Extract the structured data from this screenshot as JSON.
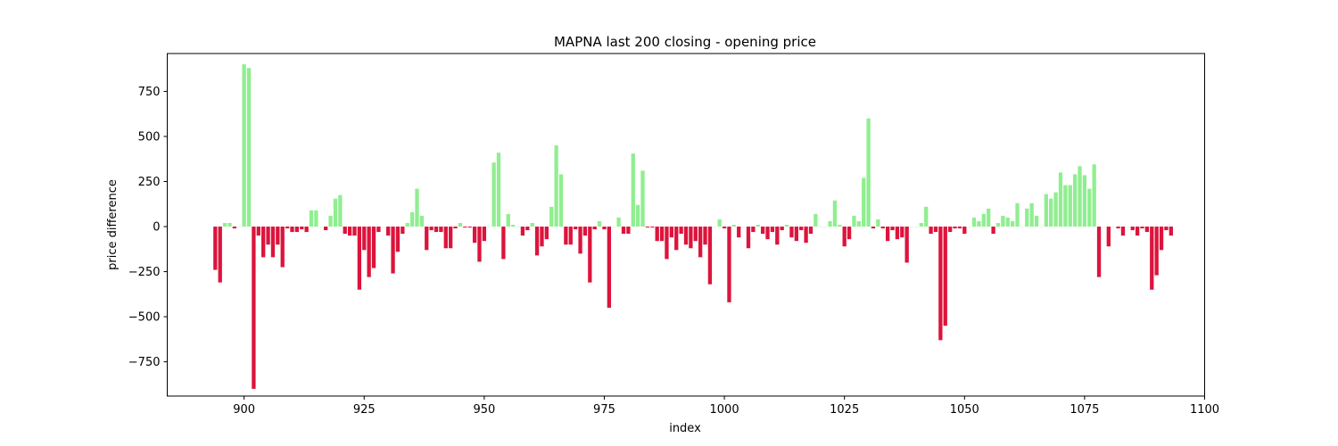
{
  "chart_data": {
    "type": "bar",
    "title": "MAPNA last 200 closing - opening price",
    "xlabel": "index",
    "ylabel": "price difference",
    "xlim": [
      884,
      1100
    ],
    "ylim": [
      -940,
      960
    ],
    "xticks": [
      900,
      925,
      950,
      975,
      1000,
      1025,
      1050,
      1075,
      1100
    ],
    "yticks": [
      -750,
      -500,
      -250,
      0,
      250,
      500,
      750
    ],
    "positive_color": "#90ee90",
    "negative_color": "#dc143c",
    "grid": false,
    "x_start": 894,
    "values": [
      -240,
      -310,
      20,
      20,
      -10,
      0,
      900,
      880,
      -900,
      -50,
      -170,
      -100,
      -170,
      -100,
      -225,
      -10,
      -30,
      -30,
      -15,
      -30,
      90,
      90,
      0,
      -20,
      60,
      155,
      175,
      -40,
      -50,
      -50,
      -350,
      -130,
      -280,
      -230,
      -30,
      0,
      -50,
      -260,
      -140,
      -40,
      20,
      80,
      210,
      60,
      -130,
      -20,
      -30,
      -30,
      -120,
      -120,
      -10,
      20,
      -5,
      -5,
      -90,
      -195,
      -80,
      0,
      355,
      410,
      -180,
      70,
      10,
      0,
      -50,
      -20,
      20,
      -160,
      -110,
      -70,
      110,
      450,
      290,
      -100,
      -100,
      -15,
      -150,
      -50,
      -310,
      -15,
      30,
      -15,
      -450,
      0,
      50,
      -40,
      -40,
      405,
      120,
      310,
      -5,
      -5,
      -80,
      -80,
      -180,
      -60,
      -130,
      -40,
      -100,
      -120,
      -80,
      -170,
      -100,
      -320,
      0,
      40,
      -10,
      -420,
      10,
      -60,
      0,
      -120,
      -30,
      10,
      -40,
      -70,
      -30,
      -100,
      -20,
      10,
      -60,
      -80,
      -20,
      -90,
      -40,
      70,
      0,
      0,
      30,
      145,
      10,
      -110,
      -70,
      60,
      30,
      270,
      600,
      -10,
      40,
      -10,
      -80,
      -20,
      -70,
      -60,
      -200,
      0,
      0,
      20,
      110,
      -40,
      -30,
      -630,
      -550,
      -30,
      -10,
      -10,
      -40,
      0,
      50,
      30,
      70,
      100,
      -40,
      20,
      60,
      50,
      30,
      130,
      0,
      100,
      130,
      60,
      0,
      180,
      155,
      190,
      300,
      230,
      230,
      290,
      335,
      285,
      210,
      345,
      -280,
      0,
      -110,
      0,
      -10,
      -50,
      0,
      -20,
      -50,
      -10,
      -30,
      -350,
      -270,
      -130,
      -20,
      -50
    ]
  }
}
